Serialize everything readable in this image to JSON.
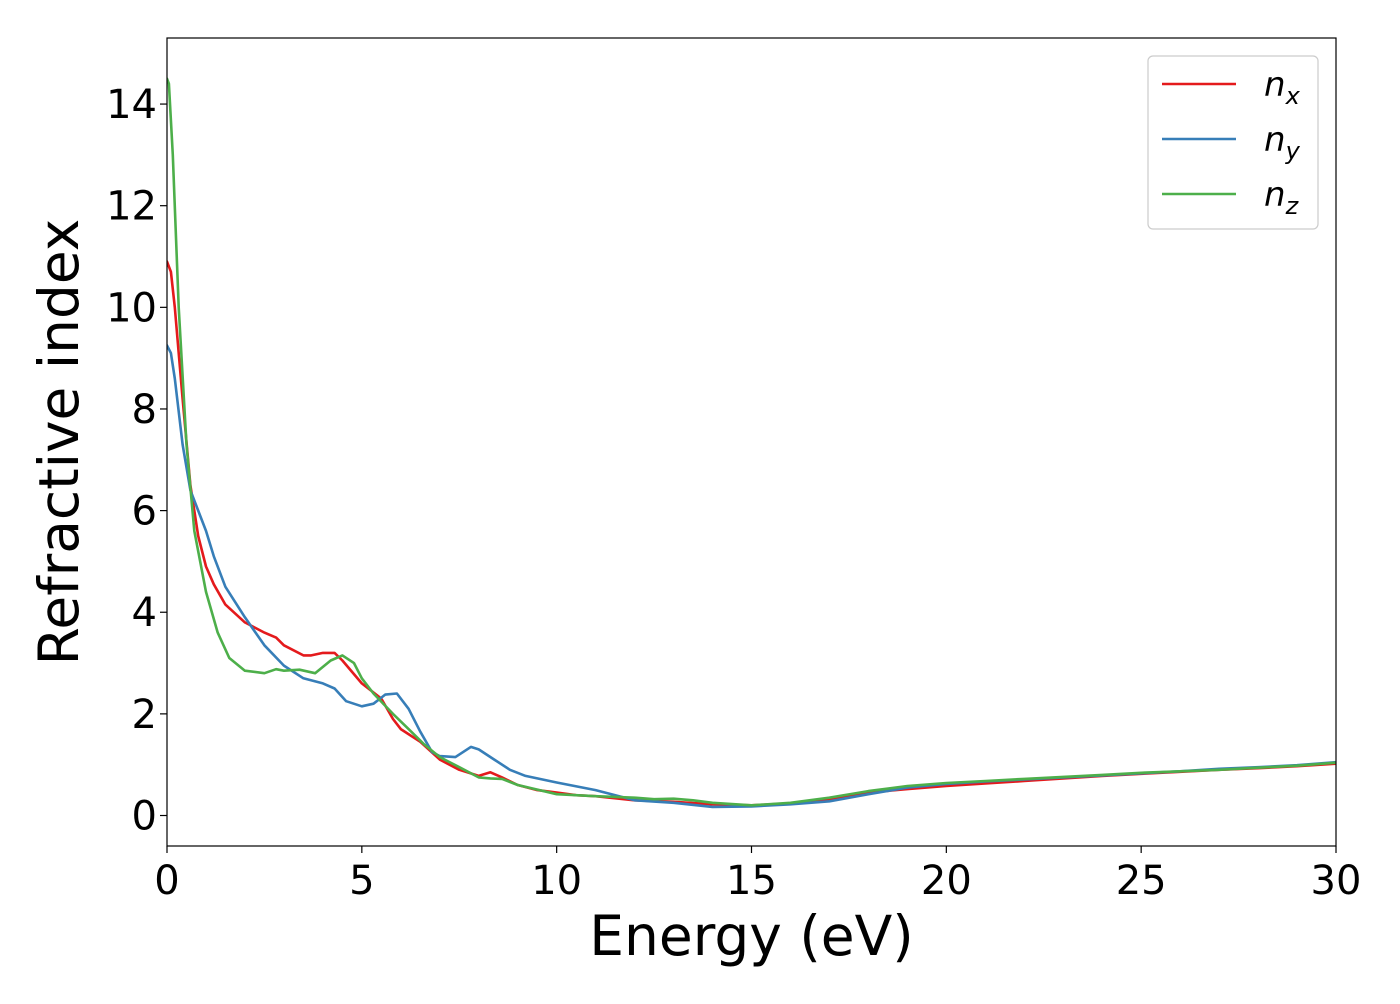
{
  "chart_data": {
    "type": "line",
    "title": "",
    "xlabel": "Energy (eV)",
    "ylabel": "Refractive index",
    "xlim": [
      0,
      30
    ],
    "ylim": [
      -0.6,
      15.3
    ],
    "xticks": [
      0,
      5,
      10,
      15,
      20,
      25,
      30
    ],
    "yticks": [
      0,
      2,
      4,
      6,
      8,
      10,
      12,
      14
    ],
    "grid": false,
    "legend_position": "top-right",
    "series": [
      {
        "name": "n_x",
        "label_base": "n",
        "label_sub": "x",
        "color": "#e41a1c",
        "x": [
          0,
          0.1,
          0.2,
          0.4,
          0.6,
          0.8,
          1.0,
          1.2,
          1.5,
          2.0,
          2.5,
          2.8,
          3.0,
          3.5,
          3.7,
          4.0,
          4.3,
          4.5,
          5.0,
          5.5,
          5.8,
          6.0,
          6.5,
          7.0,
          7.5,
          8.0,
          8.3,
          8.6,
          9.0,
          9.5,
          10.0,
          10.5,
          11.0,
          12.0,
          13.0,
          14.0,
          15.0,
          16.0,
          17.0,
          18.0,
          19.0,
          20.0,
          21.0,
          22.0,
          23.0,
          24.0,
          25.0,
          26.0,
          27.0,
          28.0,
          29.0,
          30.0
        ],
        "values": [
          10.9,
          10.7,
          10.0,
          8.2,
          6.5,
          5.5,
          4.9,
          4.55,
          4.15,
          3.8,
          3.6,
          3.5,
          3.35,
          3.15,
          3.15,
          3.2,
          3.2,
          3.05,
          2.6,
          2.3,
          1.9,
          1.7,
          1.45,
          1.1,
          0.9,
          0.78,
          0.85,
          0.75,
          0.6,
          0.5,
          0.45,
          0.4,
          0.38,
          0.3,
          0.27,
          0.22,
          0.2,
          0.24,
          0.32,
          0.45,
          0.52,
          0.58,
          0.63,
          0.68,
          0.73,
          0.78,
          0.82,
          0.86,
          0.9,
          0.93,
          0.97,
          1.02
        ]
      },
      {
        "name": "n_y",
        "label_base": "n",
        "label_sub": "y",
        "color": "#377eb8",
        "x": [
          0,
          0.1,
          0.2,
          0.4,
          0.6,
          0.8,
          1.0,
          1.2,
          1.5,
          2.0,
          2.5,
          3.0,
          3.5,
          4.0,
          4.3,
          4.6,
          5.0,
          5.3,
          5.6,
          5.9,
          6.2,
          6.5,
          6.8,
          7.0,
          7.4,
          7.8,
          8.0,
          8.4,
          8.8,
          9.2,
          10.0,
          11.0,
          12.0,
          13.0,
          14.0,
          15.0,
          16.0,
          17.0,
          18.0,
          19.0,
          20.0,
          21.0,
          22.0,
          23.0,
          24.0,
          25.0,
          26.0,
          27.0,
          28.0,
          29.0,
          30.0
        ],
        "values": [
          9.25,
          9.1,
          8.6,
          7.3,
          6.4,
          6.0,
          5.6,
          5.1,
          4.5,
          3.9,
          3.35,
          2.95,
          2.7,
          2.6,
          2.5,
          2.25,
          2.15,
          2.2,
          2.38,
          2.4,
          2.1,
          1.65,
          1.25,
          1.17,
          1.15,
          1.35,
          1.3,
          1.1,
          0.9,
          0.78,
          0.65,
          0.5,
          0.3,
          0.25,
          0.17,
          0.18,
          0.22,
          0.28,
          0.42,
          0.55,
          0.62,
          0.67,
          0.71,
          0.75,
          0.79,
          0.83,
          0.87,
          0.92,
          0.95,
          0.99,
          1.05
        ]
      },
      {
        "name": "n_z",
        "label_base": "n",
        "label_sub": "z",
        "color": "#4daf4a",
        "x": [
          0,
          0.05,
          0.15,
          0.3,
          0.5,
          0.7,
          1.0,
          1.3,
          1.6,
          2.0,
          2.5,
          2.8,
          3.0,
          3.4,
          3.8,
          4.2,
          4.5,
          4.8,
          5.0,
          5.3,
          5.8,
          6.2,
          6.6,
          7.0,
          7.5,
          8.0,
          8.3,
          8.6,
          9.0,
          10.0,
          11.0,
          12.0,
          12.5,
          13.0,
          13.5,
          14.0,
          15.0,
          16.0,
          17.0,
          18.0,
          19.0,
          20.0,
          21.0,
          22.0,
          23.0,
          24.0,
          25.0,
          26.0,
          27.0,
          28.0,
          29.0,
          30.0
        ],
        "values": [
          14.5,
          14.4,
          13.0,
          10.0,
          7.3,
          5.6,
          4.4,
          3.6,
          3.1,
          2.85,
          2.8,
          2.88,
          2.85,
          2.87,
          2.8,
          3.05,
          3.15,
          3.0,
          2.7,
          2.4,
          2.0,
          1.7,
          1.4,
          1.15,
          0.95,
          0.75,
          0.73,
          0.72,
          0.6,
          0.42,
          0.38,
          0.35,
          0.32,
          0.33,
          0.3,
          0.25,
          0.2,
          0.25,
          0.35,
          0.48,
          0.58,
          0.64,
          0.68,
          0.72,
          0.76,
          0.8,
          0.84,
          0.87,
          0.9,
          0.94,
          0.98,
          1.04
        ]
      }
    ]
  }
}
